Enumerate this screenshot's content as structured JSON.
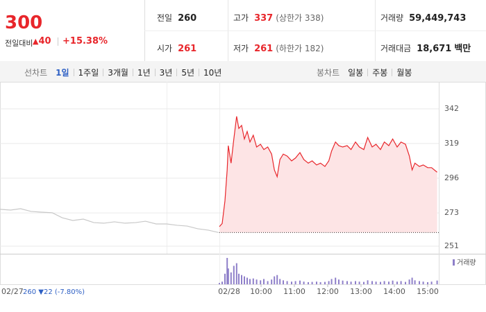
{
  "header": {
    "price": "300",
    "change_caption": "전일대비",
    "change": "40",
    "change_rate": "+15.38%",
    "stats": [
      {
        "label": "전일",
        "value": "260"
      },
      {
        "label": "고가",
        "value": "337",
        "note": "(상한가 338)"
      },
      {
        "label": "거래량",
        "value": "59,449,743"
      },
      {
        "label": "시가",
        "value": "261"
      },
      {
        "label": "저가",
        "value": "261",
        "note": "(하한가 182)"
      },
      {
        "label": "거래대금",
        "value": "18,671",
        "unit": "백만"
      }
    ]
  },
  "tabs": {
    "line_caption": "선차트",
    "line_items": [
      "1일",
      "1주일",
      "3개월",
      "1년",
      "3년",
      "5년",
      "10년"
    ],
    "candle_caption": "봉차트",
    "candle_items": [
      "일봉",
      "주봉",
      "월봉"
    ]
  },
  "chart_data": {
    "type": "line",
    "days": [
      "02/27",
      "02/28"
    ],
    "prev_summary": "260 ▼22 (-7.80%)",
    "xlim": [
      "08:45",
      "15:20"
    ],
    "xticks": [
      "10:00",
      "11:00",
      "12:00",
      "13:00",
      "14:00",
      "15:00"
    ],
    "ylim": [
      246.4,
      355.3
    ],
    "yticks": [
      342,
      319,
      296,
      273,
      251
    ],
    "grid": true,
    "baseline": 260,
    "series": [
      {
        "day": 0,
        "color": "#c8c8c8",
        "x": [
          "08:45",
          "09:04",
          "09:22",
          "09:41",
          "10:00",
          "10:19",
          "10:37",
          "10:56",
          "11:15",
          "11:34",
          "11:52",
          "12:11",
          "12:30",
          "12:49",
          "13:07",
          "13:26",
          "13:45",
          "14:04",
          "14:22",
          "14:41",
          "15:00",
          "15:19"
        ],
        "values": [
          275.4,
          274.9,
          275.8,
          274.0,
          273.5,
          273.1,
          269.8,
          268.0,
          268.9,
          266.6,
          266.2,
          267.1,
          266.2,
          266.6,
          267.5,
          265.7,
          265.7,
          264.8,
          264.3,
          262.5,
          261.6,
          260
        ]
      },
      {
        "day": 1,
        "color": "#e8262b",
        "fill": "#fde4e5",
        "x": [
          "08:45",
          "08:50",
          "08:55",
          "08:59",
          "09:01",
          "09:06",
          "09:11",
          "09:16",
          "09:20",
          "09:25",
          "09:30",
          "09:35",
          "09:40",
          "09:46",
          "09:52",
          "09:59",
          "10:05",
          "10:12",
          "10:19",
          "10:24",
          "10:29",
          "10:34",
          "10:40",
          "10:47",
          "10:55",
          "11:02",
          "11:10",
          "11:17",
          "11:25",
          "11:32",
          "11:40",
          "11:47",
          "11:55",
          "12:02",
          "12:07",
          "12:14",
          "12:20",
          "12:27",
          "12:35",
          "12:42",
          "12:50",
          "12:57",
          "13:05",
          "13:12",
          "13:20",
          "13:27",
          "13:35",
          "13:42",
          "13:50",
          "13:57",
          "14:05",
          "14:12",
          "14:20",
          "14:27",
          "14:32",
          "14:37",
          "14:45",
          "14:52",
          "15:00",
          "15:07",
          "15:17"
        ],
        "values": [
          263.9,
          266,
          281,
          301.5,
          317.6,
          306,
          322,
          337,
          329,
          331,
          322,
          327,
          320,
          324.5,
          316.7,
          318.5,
          315,
          316.7,
          312,
          301.5,
          297,
          308.4,
          312,
          310.7,
          307.5,
          309.4,
          313,
          308.4,
          306,
          307.5,
          304.8,
          306,
          303.8,
          307.5,
          314,
          320,
          317.6,
          316.7,
          317.6,
          315,
          320,
          316.7,
          315,
          323,
          316.7,
          318.5,
          315,
          320,
          317.6,
          322,
          316.7,
          320,
          318.5,
          310.7,
          301.5,
          306,
          303.8,
          304.8,
          303,
          303,
          300
        ]
      }
    ],
    "volume": {
      "name": "거래량",
      "color": "#8e7fc9",
      "day": 1,
      "vlim": [
        0,
        100
      ],
      "values": [
        5,
        10,
        40,
        100,
        60,
        45,
        70,
        80,
        40,
        35,
        30,
        25,
        20,
        22,
        18,
        15,
        20,
        12,
        18,
        30,
        35,
        20,
        15,
        12,
        10,
        12,
        14,
        10,
        8,
        9,
        10,
        8,
        9,
        12,
        20,
        25,
        18,
        14,
        12,
        10,
        12,
        10,
        9,
        15,
        12,
        10,
        9,
        12,
        10,
        14,
        10,
        12,
        9,
        18,
        25,
        15,
        12,
        10,
        8,
        10,
        14
      ]
    }
  }
}
